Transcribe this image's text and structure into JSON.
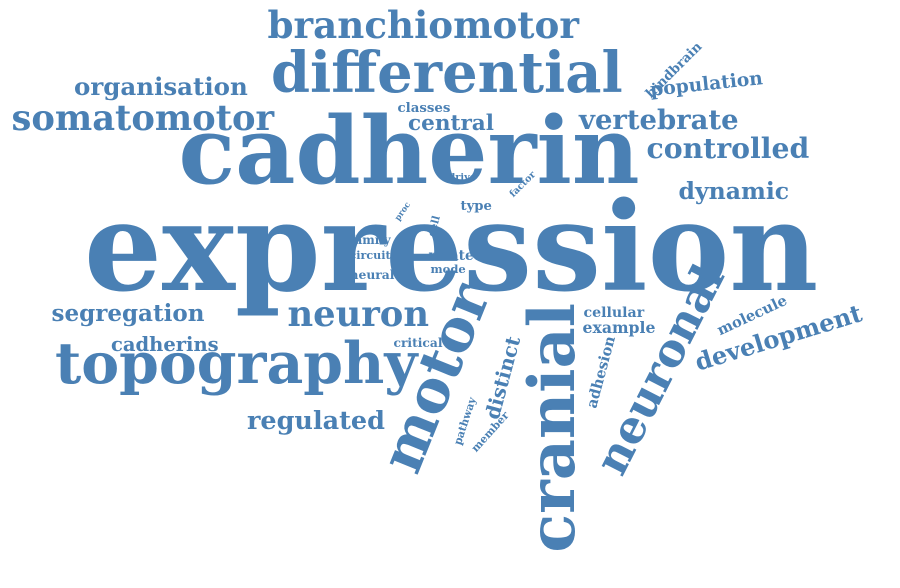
{
  "cloud": {
    "color": "#4a80b4",
    "words": [
      "expression",
      "cadherin",
      "differential",
      "branchiomotor",
      "topography",
      "cranial",
      "motor",
      "neuronal",
      "somatomotor",
      "neuron",
      "organisation",
      "vertebrate",
      "controlled",
      "central",
      "development",
      "regulated",
      "hindbrain",
      "population",
      "dynamic",
      "segregation",
      "cadherins",
      "distinct",
      "molecule",
      "adhesion",
      "cellular",
      "example",
      "classes",
      "critical",
      "pathway",
      "member",
      "family",
      "circuit",
      "neural",
      "related",
      "mode",
      "type",
      "drive",
      "factor",
      "cell",
      "proc"
    ]
  }
}
